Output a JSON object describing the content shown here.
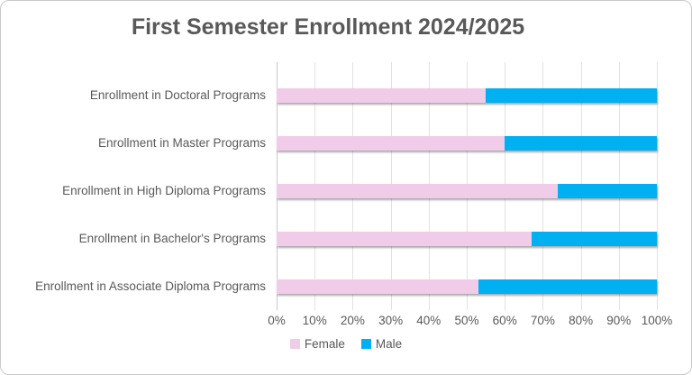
{
  "chart_data": {
    "type": "bar",
    "orientation": "horizontal",
    "stacked": true,
    "title": "First Semester Enrollment 2024/2025",
    "categories": [
      "Enrollment in Doctoral Programs",
      "Enrollment in Master Programs",
      "Enrollment in High Diploma Programs",
      "Enrollment in Bachelor's Programs",
      "Enrollment in Associate Diploma Programs"
    ],
    "series": [
      {
        "name": "Female",
        "color": "#F0CCE8",
        "values": [
          55,
          60,
          74,
          67,
          53
        ]
      },
      {
        "name": "Male",
        "color": "#00B0F0",
        "values": [
          45,
          40,
          26,
          33,
          47
        ]
      }
    ],
    "x_ticks": [
      "0%",
      "10%",
      "20%",
      "30%",
      "40%",
      "50%",
      "60%",
      "70%",
      "80%",
      "90%",
      "100%"
    ],
    "xlim": [
      0,
      100
    ],
    "grid": true,
    "legend_position": "bottom",
    "colors": {
      "gridline": "#E2E2E2",
      "axis_line": "#C9C9C9",
      "text": "#595959",
      "title": "#595959",
      "background": "#FFFFFF"
    }
  }
}
